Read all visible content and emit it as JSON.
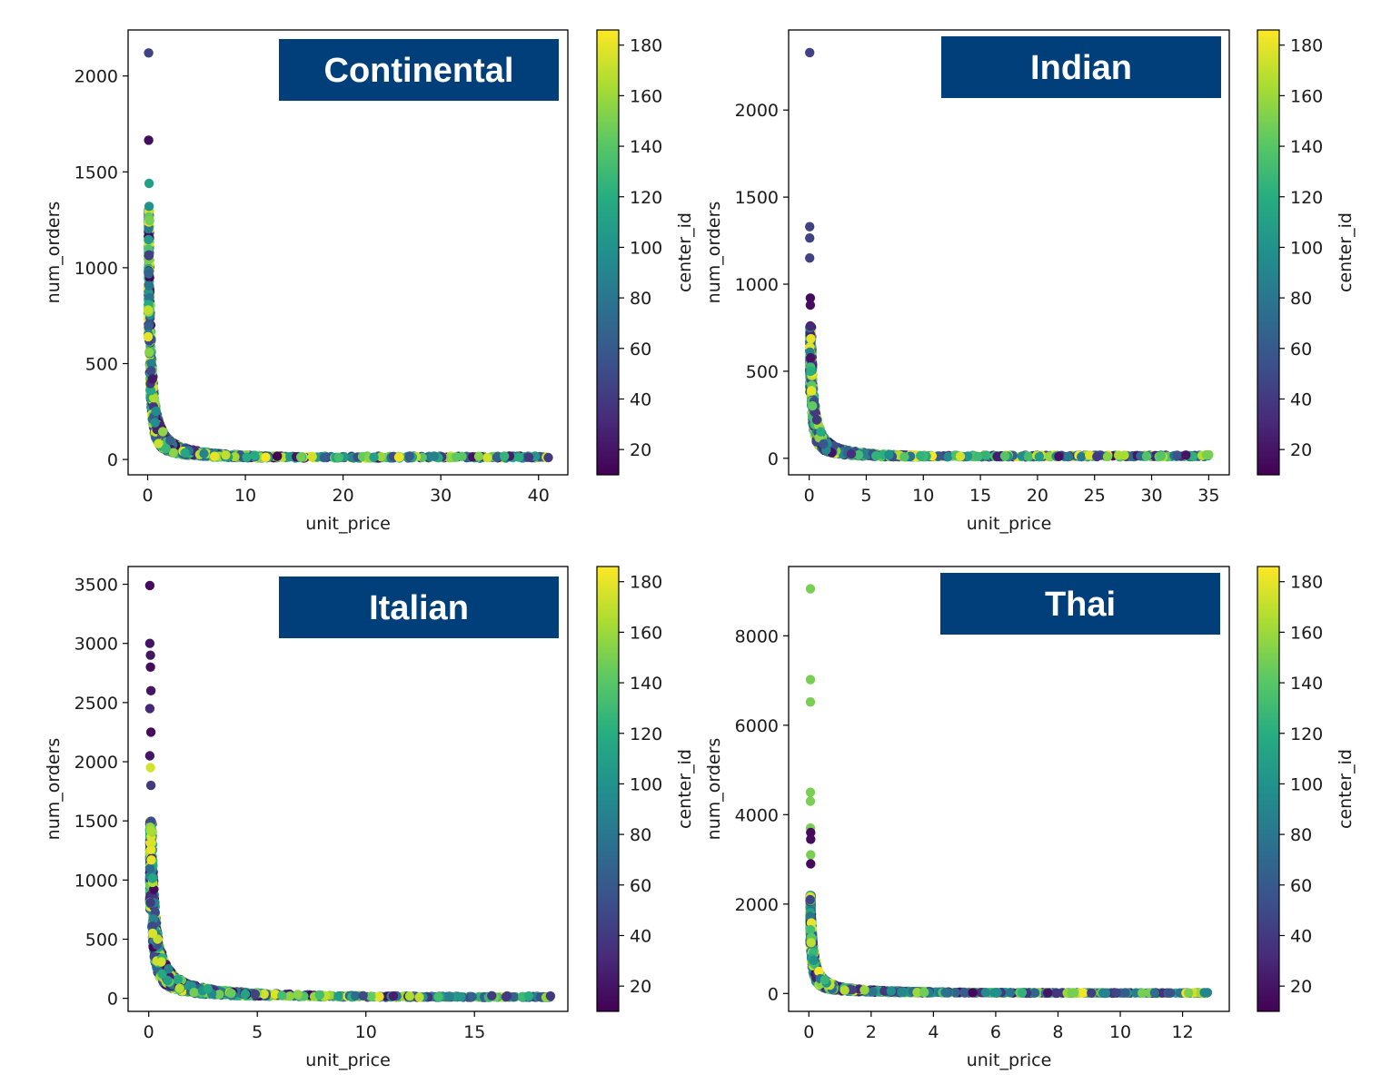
{
  "colormap": {
    "name": "viridis",
    "range": [
      10,
      186
    ],
    "ticks": [
      20,
      40,
      60,
      80,
      100,
      120,
      140,
      160,
      180
    ],
    "label": "center_id"
  },
  "title_box_color": "#003f7a",
  "chart_data": [
    {
      "type": "scatter",
      "title": "Continental",
      "xlabel": "unit_price",
      "ylabel": "num_orders",
      "colorbar_label": "center_id",
      "xlim": [
        -2,
        43
      ],
      "ylim": [
        -80,
        2240
      ],
      "xticks": [
        0,
        10,
        20,
        30,
        40
      ],
      "yticks": [
        0,
        500,
        1000,
        1500,
        2000
      ],
      "curve_k": 160,
      "x_extent": [
        0.08,
        41
      ],
      "y_cap": 1300,
      "seed": 11,
      "points": [
        {
          "x": 0.1,
          "y": 2120,
          "c": 45
        },
        {
          "x": 0.1,
          "y": 1665,
          "c": 15
        },
        {
          "x": 0.15,
          "y": 1440,
          "c": 110
        },
        {
          "x": 0.15,
          "y": 1320,
          "c": 100
        },
        {
          "x": 0.2,
          "y": 1245,
          "c": 150
        },
        {
          "x": 0.05,
          "y": 780,
          "c": 170
        },
        {
          "x": 0.05,
          "y": 640,
          "c": 180
        },
        {
          "x": 41,
          "y": 10,
          "c": 40
        },
        {
          "x": 39,
          "y": 12,
          "c": 40
        },
        {
          "x": 38,
          "y": 12,
          "c": 120
        }
      ]
    },
    {
      "type": "scatter",
      "title": "Indian",
      "xlabel": "unit_price",
      "ylabel": "num_orders",
      "colorbar_label": "center_id",
      "xlim": [
        -1.8,
        36.8
      ],
      "ylim": [
        -95,
        2460
      ],
      "xticks": [
        0,
        5,
        10,
        15,
        20,
        25,
        30,
        35
      ],
      "yticks": [
        0,
        500,
        1000,
        1500,
        2000
      ],
      "curve_k": 110,
      "x_extent": [
        0.06,
        35
      ],
      "y_cap": 760,
      "seed": 23,
      "points": [
        {
          "x": 0.05,
          "y": 2330,
          "c": 45
        },
        {
          "x": 0.05,
          "y": 1330,
          "c": 45
        },
        {
          "x": 0.05,
          "y": 1265,
          "c": 45
        },
        {
          "x": 0.05,
          "y": 1150,
          "c": 45
        },
        {
          "x": 0.1,
          "y": 920,
          "c": 15
        },
        {
          "x": 0.1,
          "y": 880,
          "c": 15
        },
        {
          "x": 0.1,
          "y": 760,
          "c": 30
        },
        {
          "x": 35,
          "y": 20,
          "c": 150
        },
        {
          "x": 34.8,
          "y": 20,
          "c": 150
        },
        {
          "x": 33,
          "y": 18,
          "c": 20
        }
      ]
    },
    {
      "type": "scatter",
      "title": "Italian",
      "xlabel": "unit_price",
      "ylabel": "num_orders",
      "colorbar_label": "center_id",
      "xlim": [
        -0.95,
        19.3
      ],
      "ylim": [
        -110,
        3650
      ],
      "xticks": [
        0,
        5,
        10,
        15
      ],
      "yticks": [
        0,
        500,
        1000,
        1500,
        2000,
        2500,
        3000,
        3500
      ],
      "curve_k": 160,
      "x_extent": [
        0.05,
        18.5
      ],
      "y_cap": 1500,
      "seed": 37,
      "points": [
        {
          "x": 0.05,
          "y": 3490,
          "c": 15
        },
        {
          "x": 0.05,
          "y": 3000,
          "c": 20
        },
        {
          "x": 0.08,
          "y": 2900,
          "c": 20
        },
        {
          "x": 0.08,
          "y": 2800,
          "c": 15
        },
        {
          "x": 0.1,
          "y": 2600,
          "c": 20
        },
        {
          "x": 0.05,
          "y": 2450,
          "c": 30
        },
        {
          "x": 0.1,
          "y": 2250,
          "c": 15
        },
        {
          "x": 0.05,
          "y": 2050,
          "c": 20
        },
        {
          "x": 0.08,
          "y": 1950,
          "c": 175
        },
        {
          "x": 0.1,
          "y": 1800,
          "c": 40
        },
        {
          "x": 0.12,
          "y": 1170,
          "c": 180
        },
        {
          "x": 18.5,
          "y": 20,
          "c": 40
        },
        {
          "x": 17.5,
          "y": 20,
          "c": 120
        },
        {
          "x": 16.5,
          "y": 20,
          "c": 40
        },
        {
          "x": 15.8,
          "y": 22,
          "c": 40
        }
      ]
    },
    {
      "type": "scatter",
      "title": "Thai",
      "xlabel": "unit_price",
      "ylabel": "num_orders",
      "colorbar_label": "center_id",
      "xlim": [
        -0.65,
        13.5
      ],
      "ylim": [
        -400,
        9550
      ],
      "xticks": [
        0,
        2,
        4,
        6,
        8,
        10,
        12
      ],
      "yticks": [
        0,
        2000,
        4000,
        6000,
        8000
      ],
      "curve_k": 110,
      "x_extent": [
        0.04,
        12.8
      ],
      "y_cap": 2200,
      "seed": 53,
      "points": [
        {
          "x": 0.05,
          "y": 9050,
          "c": 150
        },
        {
          "x": 0.05,
          "y": 7020,
          "c": 150
        },
        {
          "x": 0.05,
          "y": 6520,
          "c": 150
        },
        {
          "x": 0.05,
          "y": 4500,
          "c": 150
        },
        {
          "x": 0.05,
          "y": 4300,
          "c": 150
        },
        {
          "x": 0.05,
          "y": 3700,
          "c": 150
        },
        {
          "x": 0.06,
          "y": 3600,
          "c": 15
        },
        {
          "x": 0.06,
          "y": 3450,
          "c": 15
        },
        {
          "x": 0.06,
          "y": 3100,
          "c": 150
        },
        {
          "x": 0.06,
          "y": 2900,
          "c": 15
        },
        {
          "x": 12.8,
          "y": 20,
          "c": 90
        },
        {
          "x": 12.7,
          "y": 20,
          "c": 90
        }
      ]
    }
  ]
}
